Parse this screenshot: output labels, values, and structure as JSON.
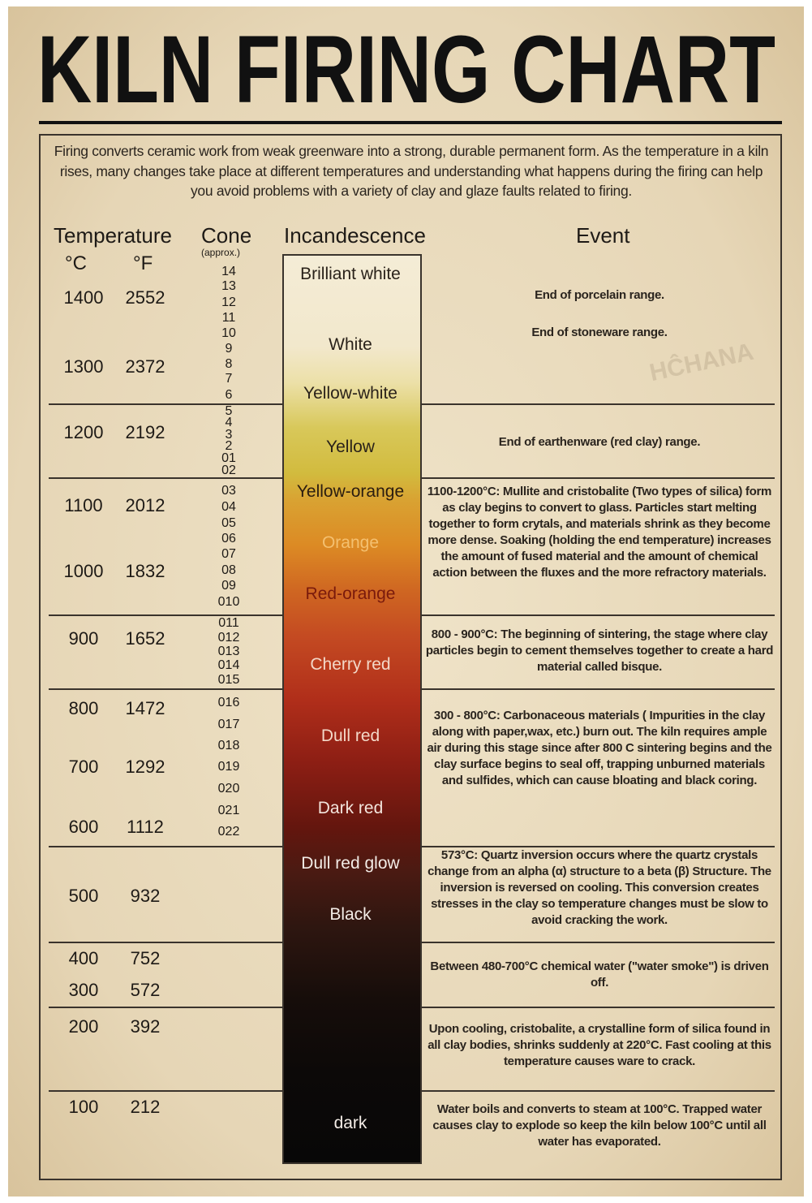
{
  "title": "KILN FIRING CHART",
  "intro": "Firing converts ceramic work from weak greenware into a strong, durable permanent form. As the temperature in a kiln rises, many changes take place at different temperatures and understanding what happens during the firing can help you avoid problems with a variety of clay and glaze faults related to firing.",
  "watermark": "HĈHANA",
  "headers": {
    "temperature": "Temperature",
    "celsius": "°C",
    "fahrenheit": "°F",
    "cone": "Cone",
    "cone_note": "(approx.)",
    "incandescence": "Incandescence",
    "event": "Event"
  },
  "temperatures": [
    {
      "c": 1400,
      "f": 2552
    },
    {
      "c": 1300,
      "f": 2372
    },
    {
      "c": 1200,
      "f": 2192
    },
    {
      "c": 1100,
      "f": 2012
    },
    {
      "c": 1000,
      "f": 1832
    },
    {
      "c": 900,
      "f": 1652
    },
    {
      "c": 800,
      "f": 1472
    },
    {
      "c": 700,
      "f": 1292
    },
    {
      "c": 600,
      "f": 1112
    },
    {
      "c": 500,
      "f": 932
    },
    {
      "c": 400,
      "f": 752
    },
    {
      "c": 300,
      "f": 572
    },
    {
      "c": 200,
      "f": 392
    },
    {
      "c": 100,
      "f": 212
    }
  ],
  "cones": [
    "14",
    "13",
    "12",
    "11",
    "10",
    "9",
    "8",
    "7",
    "6",
    "5",
    "4",
    "3",
    "2",
    "01",
    "02",
    "03",
    "04",
    "05",
    "06",
    "07",
    "08",
    "09",
    "010",
    "011",
    "012",
    "013",
    "014",
    "015",
    "016",
    "017",
    "018",
    "019",
    "020",
    "021",
    "022"
  ],
  "incandescence": [
    "Brilliant white",
    "White",
    "Yellow-white",
    "Yellow",
    "Yellow-orange",
    "Orange",
    "Red-orange",
    "Cherry red",
    "Dull red",
    "Dark red",
    "Dull red glow",
    "Black",
    "dark"
  ],
  "events": [
    "End of porcelain range.",
    "End of stoneware range.",
    "End of earthenware (red clay) range.",
    "1100-1200°C: Mullite and cristobalite (Two types of silica) form as clay begins to convert to glass. Particles start melting together to form crytals, and materials shrink as they become more dense. Soaking (holding the end temperature) increases the amount of fused material and the amount of chemical action between the fluxes and the more refractory materials.",
    "800 - 900°C: The beginning of sintering, the stage where clay particles begin to cement themselves together to create a hard material called bisque.",
    "300 - 800°C: Carbonaceous materials ( Impurities in the clay along with paper,wax, etc.) burn out. The kiln requires ample air during this stage since after 800 C sintering begins and the clay surface begins to seal off, trapping unburned materials and sulfides, which can cause bloating and black coring.",
    "573°C: Quartz inversion occurs where the quartz crystals change from an alpha (α) structure to a beta (β) Structure. The inversion is reversed on cooling. This conversion creates stresses in the clay so temperature changes must be slow to avoid cracking the work.",
    "Between 480-700°C chemical water (\"water smoke\") is driven off.",
    "Upon cooling, cristobalite, a crystalline form of silica found in all clay bodies, shrinks suddenly at 220°C. Fast cooling at this temperature causes ware to crack.",
    "Water boils and converts to steam at 100°C. Trapped water causes clay to explode so keep the kiln below 100°C until all water has evaporated."
  ]
}
